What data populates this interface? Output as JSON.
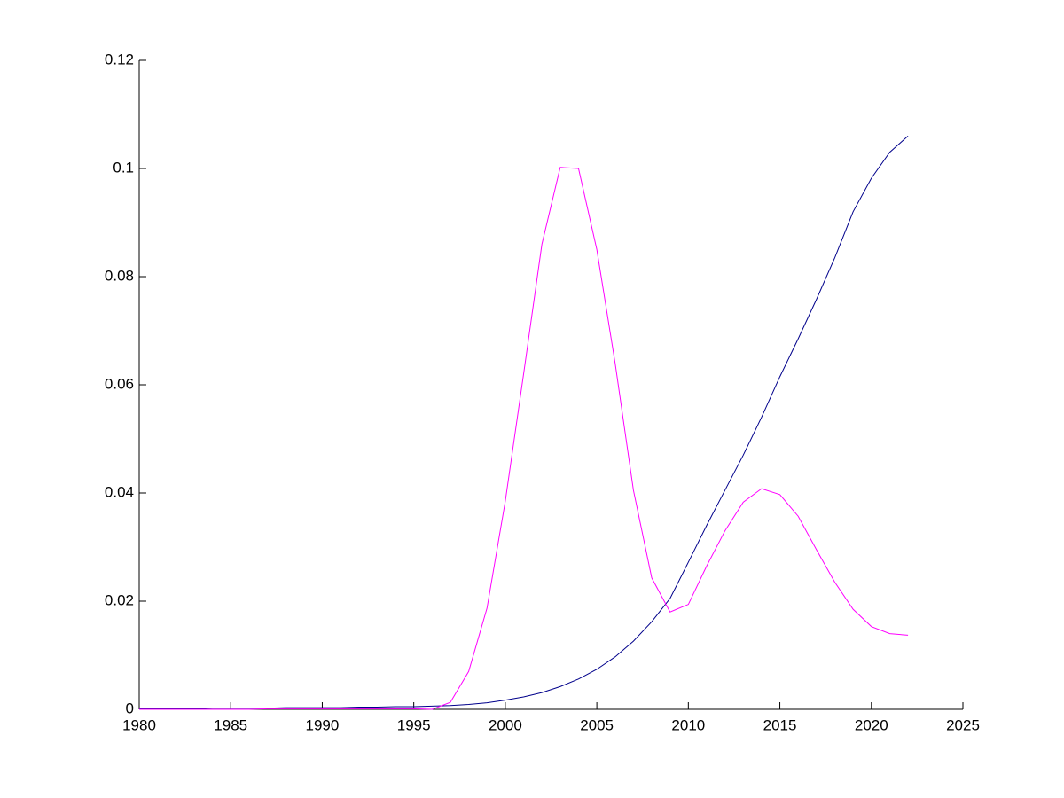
{
  "chart_data": {
    "type": "line",
    "x": [
      1980,
      1981,
      1982,
      1983,
      1984,
      1985,
      1986,
      1987,
      1988,
      1989,
      1990,
      1991,
      1992,
      1993,
      1994,
      1995,
      1996,
      1997,
      1998,
      1999,
      2000,
      2001,
      2002,
      2003,
      2004,
      2005,
      2006,
      2007,
      2008,
      2009,
      2010,
      2011,
      2012,
      2013,
      2014,
      2015,
      2016,
      2017,
      2018,
      2019,
      2020,
      2021,
      2022
    ],
    "series": [
      {
        "color": "#00008b",
        "values": [
          0.0001,
          0.0001,
          0.0001,
          0.0001,
          0.0002,
          0.0002,
          0.0002,
          0.0002,
          0.0003,
          0.0003,
          0.0003,
          0.0003,
          0.0004,
          0.0004,
          0.0005,
          0.0005,
          0.0006,
          0.0007,
          0.0009,
          0.0012,
          0.0017,
          0.0023,
          0.0031,
          0.0042,
          0.0056,
          0.0074,
          0.0097,
          0.0126,
          0.0162,
          0.0205,
          0.0272,
          0.034,
          0.0405,
          0.047,
          0.054,
          0.0615,
          0.0685,
          0.0758,
          0.0835,
          0.092,
          0.0982,
          0.103,
          0.106
        ]
      },
      {
        "color": "#ff00ff",
        "values": [
          0,
          0,
          0,
          0,
          0,
          0,
          0,
          0.0001,
          0.0001,
          0.0001,
          0.0001,
          0.0001,
          0.0001,
          0.0001,
          0.0001,
          0.0001,
          0,
          0.0013,
          0.007,
          0.0187,
          0.0385,
          0.062,
          0.086,
          0.1002,
          0.1,
          0.085,
          0.064,
          0.0405,
          0.0243,
          0.018,
          0.0194,
          0.0265,
          0.033,
          0.0383,
          0.0408,
          0.0397,
          0.0357,
          0.0295,
          0.0235,
          0.0185,
          0.0153,
          0.014,
          0.0137
        ]
      }
    ],
    "xlim": [
      1980,
      2025
    ],
    "xticks": [
      1980,
      1985,
      1990,
      1995,
      2000,
      2005,
      2010,
      2015,
      2020,
      2025
    ],
    "ylim": [
      0,
      0.12
    ],
    "yticks": [
      0,
      0.02,
      0.04,
      0.06,
      0.08,
      0.1,
      0.12
    ],
    "grid": false
  }
}
